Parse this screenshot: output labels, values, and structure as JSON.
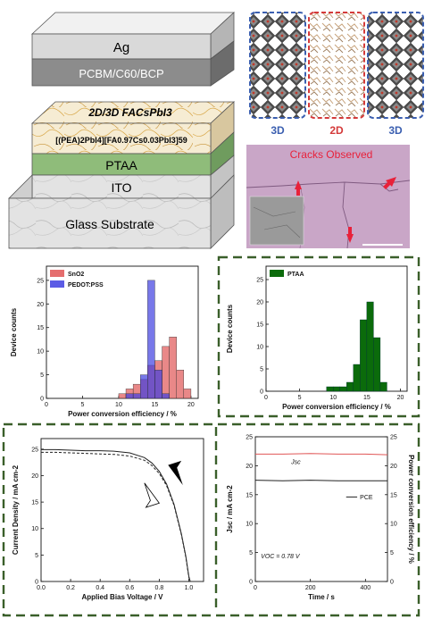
{
  "device_stack": {
    "layers": [
      "Ag",
      "PCBM/C60/BCP",
      "2D/3D FACsPbI3",
      "[(PEA)2PbI4][FA0.97Cs0.03PbI3]59",
      "PTAA",
      "ITO",
      "Glass Substrate"
    ],
    "colors": {
      "ag": "#d9d9d9",
      "pcbm": "#8c8c8c",
      "perov": "#f7e7c2",
      "ptaa": "#8fbc7a",
      "ito": "#e6e6e6",
      "glass": "#dcdcdc"
    }
  },
  "structure_panel": {
    "labels": [
      "3D",
      "2D",
      "3D"
    ],
    "colors": {
      "blue": "#3b5fb0",
      "red": "#d43a3a"
    }
  },
  "micrograph": {
    "caption": "Cracks Observed",
    "background": "#c9a6c7",
    "caption_color": "#e8213a"
  },
  "charts": {
    "hist_left": {
      "type": "bar",
      "xlabel": "Power conversion efficiency / %",
      "ylabel": "Device counts",
      "xticks": [
        "0",
        "5",
        "10",
        "15",
        "20"
      ],
      "yticks": [
        "0",
        "5",
        "10",
        "15",
        "20",
        "25"
      ],
      "series_names": [
        "SnO2",
        "PEDOT:PSS"
      ],
      "colors": [
        "#e05555",
        "#3f3fe0"
      ]
    },
    "hist_right": {
      "type": "bar",
      "xlabel": "Power conversion efficiency / %",
      "ylabel": "Device counts",
      "xticks": [
        "0",
        "5",
        "10",
        "15",
        "20"
      ],
      "yticks": [
        "0",
        "5",
        "10",
        "15",
        "20",
        "25"
      ],
      "series_names": [
        "PTAA"
      ],
      "colors": [
        "#0b6b0b"
      ]
    },
    "jv": {
      "type": "line",
      "xlabel": "Applied Bias Voltage / V",
      "ylabel": "Current Density / mA cm-2",
      "xticks": [
        "0.0",
        "0.2",
        "0.4",
        "0.6",
        "0.8",
        "1.0"
      ],
      "yticks": [
        "0",
        "5",
        "10",
        "15",
        "20",
        "25"
      ]
    },
    "stability": {
      "type": "line",
      "xlabel": "Time / s",
      "ylabel_left": "Jsc / mA cm-2",
      "ylabel_right": "Power conversion efficiency / %",
      "xticks": [
        "0",
        "200",
        "400"
      ],
      "yticks_left": [
        "0",
        "5",
        "10",
        "15",
        "20",
        "25"
      ],
      "yticks_right": [
        "0",
        "5",
        "10",
        "15",
        "20",
        "25"
      ],
      "legend": [
        "Jsc",
        "PCE"
      ],
      "annotation": "VOC = 0.78 V",
      "colors": [
        "#e05555",
        "#222222"
      ]
    }
  },
  "chart_data": [
    {
      "type": "bar",
      "x": [
        8.5,
        9.5,
        10.5,
        11.5,
        12.5,
        13.5,
        14.5,
        15.5,
        16.5,
        17.5,
        18.5,
        19.5
      ],
      "series": [
        {
          "name": "SnO2",
          "values": [
            0,
            0,
            1,
            2,
            3,
            4,
            7,
            8,
            11,
            13,
            6,
            2
          ]
        },
        {
          "name": "PEDOT:PSS",
          "values": [
            0,
            0,
            0,
            1,
            1,
            5,
            25,
            6,
            1,
            0,
            0,
            0
          ]
        }
      ],
      "xlabel": "Power conversion efficiency / %",
      "ylabel": "Device counts",
      "xlim": [
        0,
        21
      ],
      "ylim": [
        0,
        28
      ]
    },
    {
      "type": "bar",
      "x": [
        9.5,
        10.5,
        11.5,
        12.5,
        13.5,
        14.5,
        15.5,
        16.5,
        17.5
      ],
      "series": [
        {
          "name": "PTAA",
          "values": [
            1,
            1,
            1,
            2,
            6,
            16,
            20,
            12,
            2
          ]
        }
      ],
      "xlabel": "Power conversion efficiency / %",
      "ylabel": "Device counts",
      "xlim": [
        0,
        21
      ],
      "ylim": [
        0,
        28
      ]
    },
    {
      "type": "line",
      "series": [
        {
          "values": [
            [
              0,
              24.9
            ],
            [
              0.1,
              24.9
            ],
            [
              0.2,
              24.8
            ],
            [
              0.3,
              24.7
            ],
            [
              0.4,
              24.7
            ],
            [
              0.5,
              24.6
            ],
            [
              0.6,
              24.3
            ],
            [
              0.7,
              23.4
            ],
            [
              0.75,
              22.4
            ],
            [
              0.8,
              20.8
            ],
            [
              0.85,
              18.4
            ],
            [
              0.9,
              14.6
            ],
            [
              0.95,
              9.0
            ],
            [
              0.98,
              4.8
            ],
            [
              1.0,
              1.0
            ],
            [
              1.01,
              0
            ]
          ]
        },
        {
          "values": [
            [
              0,
              24.4
            ],
            [
              0.1,
              24.4
            ],
            [
              0.2,
              24.3
            ],
            [
              0.3,
              24.2
            ],
            [
              0.4,
              24.1
            ],
            [
              0.5,
              24.0
            ],
            [
              0.6,
              23.7
            ],
            [
              0.7,
              22.9
            ],
            [
              0.75,
              21.9
            ],
            [
              0.8,
              20.4
            ],
            [
              0.85,
              18.1
            ],
            [
              0.9,
              14.4
            ],
            [
              0.95,
              8.8
            ],
            [
              0.98,
              4.6
            ],
            [
              1.0,
              0.8
            ],
            [
              1.01,
              0
            ]
          ]
        }
      ],
      "xlabel": "Applied Bias Voltage / V",
      "ylabel": "Current Density / mA cm-2",
      "xlim": [
        0,
        1.1
      ],
      "ylim": [
        0,
        27
      ]
    },
    {
      "type": "line",
      "series": [
        {
          "name": "Jsc",
          "values": [
            [
              0,
              22.0
            ],
            [
              100,
              22.0
            ],
            [
              200,
              22.1
            ],
            [
              300,
              22.0
            ],
            [
              400,
              22.0
            ],
            [
              480,
              21.9
            ]
          ]
        },
        {
          "name": "PCE",
          "values": [
            [
              0,
              17.5
            ],
            [
              100,
              17.4
            ],
            [
              200,
              17.5
            ],
            [
              300,
              17.4
            ],
            [
              400,
              17.4
            ],
            [
              480,
              17.4
            ]
          ]
        }
      ],
      "xlabel": "Time / s",
      "xlim": [
        0,
        480
      ],
      "ylim": [
        0,
        25
      ]
    }
  ]
}
